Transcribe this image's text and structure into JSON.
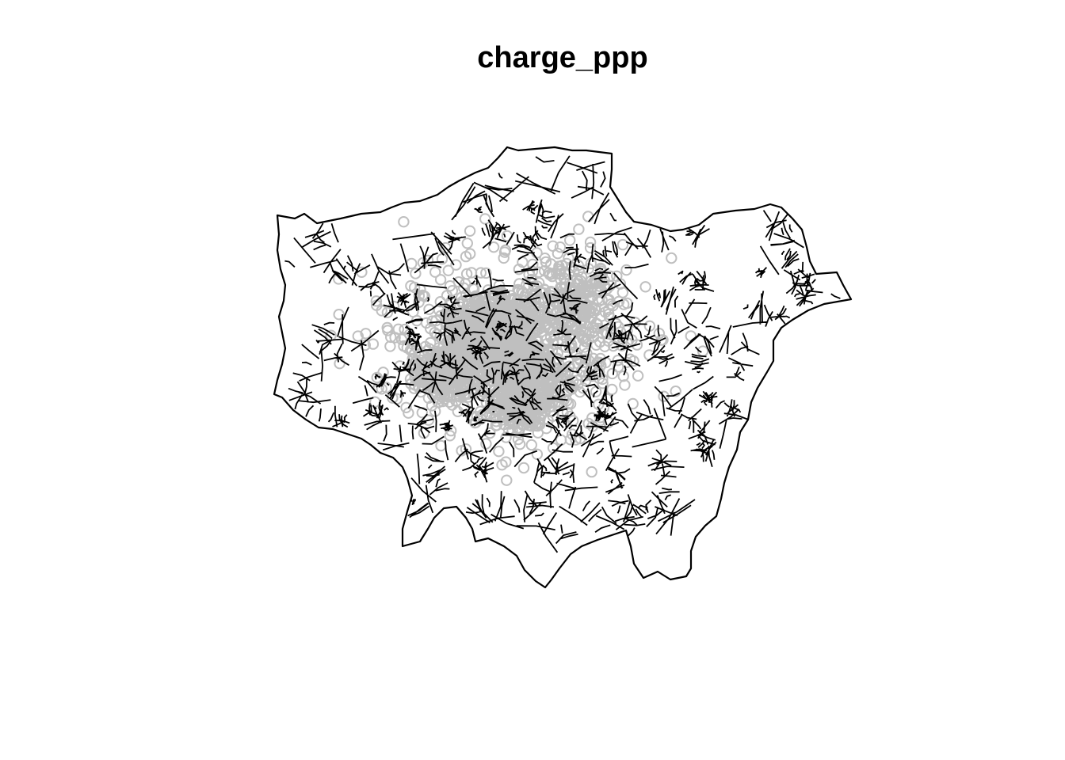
{
  "title": "charge_ppp",
  "map": {
    "type": "point-pattern-over-polygons",
    "boundary_color": "#000000",
    "point_color": "#000000",
    "point_style": "open-circle",
    "point_opacity": 0.25
  }
}
